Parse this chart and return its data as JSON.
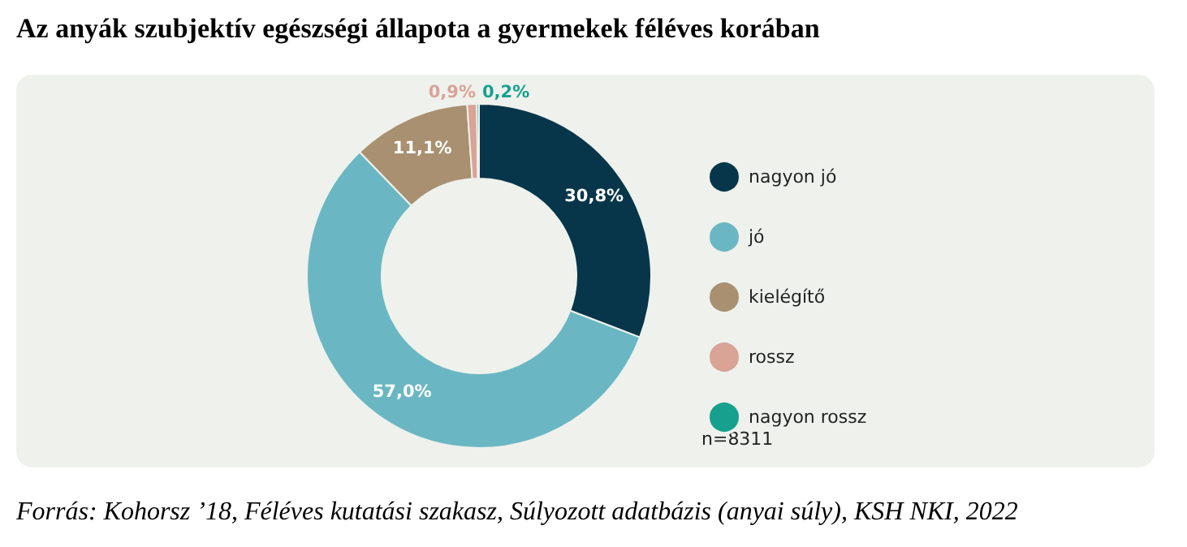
{
  "chart_data": {
    "type": "donut",
    "title": "Az anyák szubjektív egészségi állapota a gyermekek féléves korában",
    "categories": [
      "nagyon jó",
      "jó",
      "kielégítő",
      "rossz",
      "nagyon rossz"
    ],
    "values": [
      30.8,
      57.0,
      11.1,
      0.9,
      0.2
    ],
    "colors": [
      "#07364a",
      "#6ab7c3",
      "#a89070",
      "#d9a396",
      "#17a08e"
    ],
    "value_labels": [
      "30,8%",
      "57,0%",
      "11,1%",
      "0,9%",
      "0,2%"
    ],
    "legend": "right",
    "annotations": [
      "n=8311",
      "Forrás: Kohorsz ’18, Féléves kutatási szakasz, Súlyozott adatbázis (anyai súly), KSH NKI, 2022"
    ]
  }
}
